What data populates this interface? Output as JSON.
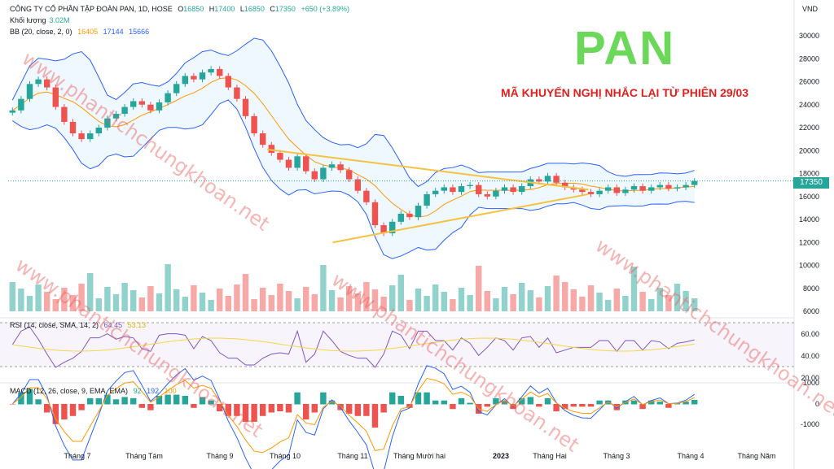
{
  "header": {
    "title": "CÔNG TY CỔ PHẦN TẬP ĐOÀN PAN, 1D, HOSE",
    "o_label": "O",
    "o_value": "16850",
    "h_label": "H",
    "h_value": "17400",
    "l_label": "L",
    "l_value": "16850",
    "c_label": "C",
    "c_value": "17350",
    "change": "+650 (+3.89%)",
    "volume_label": "Khối lượng",
    "volume_value": "3.02M",
    "bb_label": "BB (20, close, 2, 0)",
    "bb_basis": "16405",
    "bb_upper": "17144",
    "bb_lower": "15666",
    "currency": "VND"
  },
  "overlay": {
    "ticker": "PAN",
    "note": "MÃ KHUYẾN NGHỊ NHẮC LẠI TỪ PHIÊN 29/03",
    "watermark": "www.phantichchungkhoan.net"
  },
  "price_tag": "17350",
  "rsi": {
    "label": "RSI (14, close, SMA, 14, 2)",
    "value": "64.45",
    "sma": "53.13"
  },
  "macd": {
    "label": "MACD (12, 26, close, 9, EMA, EMA)",
    "hist": "92",
    "macd": "192",
    "signal": "100"
  },
  "colors": {
    "up": "#26a69a",
    "down": "#ef5350",
    "bb_band": "#2962ff",
    "bb_basis": "#ff9800",
    "triangle": "#f5c242",
    "rsi": "#7e57c2",
    "rsi_sma": "#f7d548",
    "macd": "#2962ff",
    "signal": "#ff9800"
  },
  "chart_data": {
    "type": "line",
    "x_labels": [
      "Tháng 7",
      "Tháng Tám",
      "Tháng 9",
      "Tháng 10",
      "Tháng 11",
      "Tháng Mười hai",
      "2023",
      "Tháng Hai",
      "Tháng 3",
      "Tháng 4",
      "Tháng Năm"
    ],
    "price_axis": [
      30000,
      28000,
      26000,
      24000,
      22000,
      20000,
      18000,
      16000,
      14000,
      12000,
      10000,
      8000,
      6000
    ],
    "rsi_axis": [
      60,
      40,
      20
    ],
    "macd_axis": [
      1000,
      0,
      -1000
    ],
    "close": [
      23500,
      24500,
      25800,
      26200,
      25500,
      23800,
      22500,
      21500,
      21000,
      21500,
      22000,
      22800,
      23200,
      23800,
      24300,
      24000,
      23500,
      24200,
      25000,
      25800,
      26500,
      26200,
      26800,
      27100,
      26500,
      25500,
      24500,
      23000,
      21500,
      20500,
      19800,
      19200,
      18500,
      19500,
      18200,
      17500,
      18500,
      18800,
      18300,
      17500,
      16500,
      15500,
      13500,
      12800,
      13800,
      14500,
      14200,
      15200,
      16200,
      16500,
      16800,
      16400,
      16900,
      17000,
      16200,
      16000,
      16500,
      16800,
      16400,
      16900,
      17500,
      17300,
      17800,
      17200,
      16800,
      16600,
      16400,
      16200,
      16500,
      16800,
      16300,
      16600,
      16900,
      16500,
      16800,
      17000,
      16700,
      16800,
      17000,
      17350
    ],
    "triangle_upper": [
      [
        0.375,
        20100
      ],
      [
        0.84,
        16600
      ]
    ],
    "triangle_lower": [
      [
        0.47,
        12000
      ],
      [
        0.84,
        16200
      ]
    ],
    "last_price": 17350
  }
}
